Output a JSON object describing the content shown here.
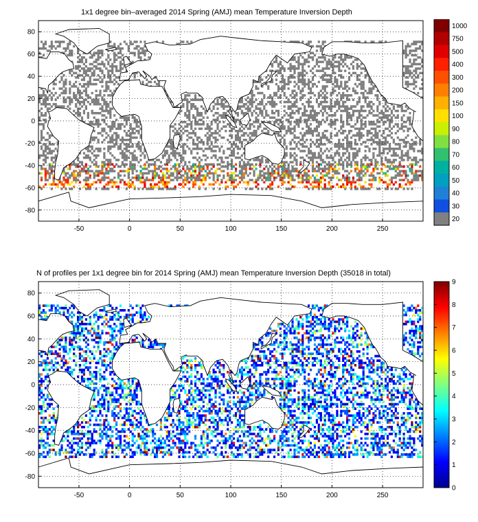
{
  "top_panel": {
    "title": "1x1 degree bin–averaged 2014 Spring (AMJ) mean Temperature Inversion Depth",
    "x_ticks": [
      -50,
      0,
      50,
      100,
      150,
      200,
      250
    ],
    "y_ticks": [
      80,
      60,
      40,
      20,
      0,
      -20,
      -40,
      -60,
      -80
    ],
    "xlim": [
      -90,
      290
    ],
    "ylim": [
      -90,
      90
    ],
    "colorbar": {
      "labels": [
        "1000",
        "750",
        "500",
        "400",
        "300",
        "200",
        "150",
        "100",
        "90",
        "80",
        "70",
        "60",
        "50",
        "40",
        "30",
        "20"
      ],
      "colors": [
        "#800000",
        "#b00000",
        "#e00000",
        "#ff2000",
        "#ff5000",
        "#ff8000",
        "#ffb000",
        "#ffe000",
        "#c8f000",
        "#80e040",
        "#30c070",
        "#00b0a0",
        "#00a0c0",
        "#2080d8",
        "#1050e0",
        "#808080"
      ]
    },
    "land_color": "#ffffff",
    "data_cell_color": "#808080"
  },
  "bottom_panel": {
    "title": "N of profiles per 1x1 degree bin for 2014 Spring (AMJ) mean Temperature Inversion Depth  (35018 in total)",
    "x_ticks": [
      -50,
      0,
      50,
      100,
      150,
      200,
      250
    ],
    "y_ticks": [
      80,
      60,
      40,
      20,
      0,
      -20,
      -40,
      -60,
      -80
    ],
    "xlim": [
      -90,
      290
    ],
    "ylim": [
      -90,
      90
    ],
    "colorbar": {
      "ticks": [
        "9",
        "8",
        "7",
        "6",
        "5",
        "4",
        "3",
        "2",
        "1",
        "0"
      ],
      "gradient": [
        "#800000",
        "#ff0000",
        "#ff8000",
        "#ffff00",
        "#80ff80",
        "#00ffff",
        "#0080ff",
        "#0000ff",
        "#00008f"
      ]
    }
  }
}
